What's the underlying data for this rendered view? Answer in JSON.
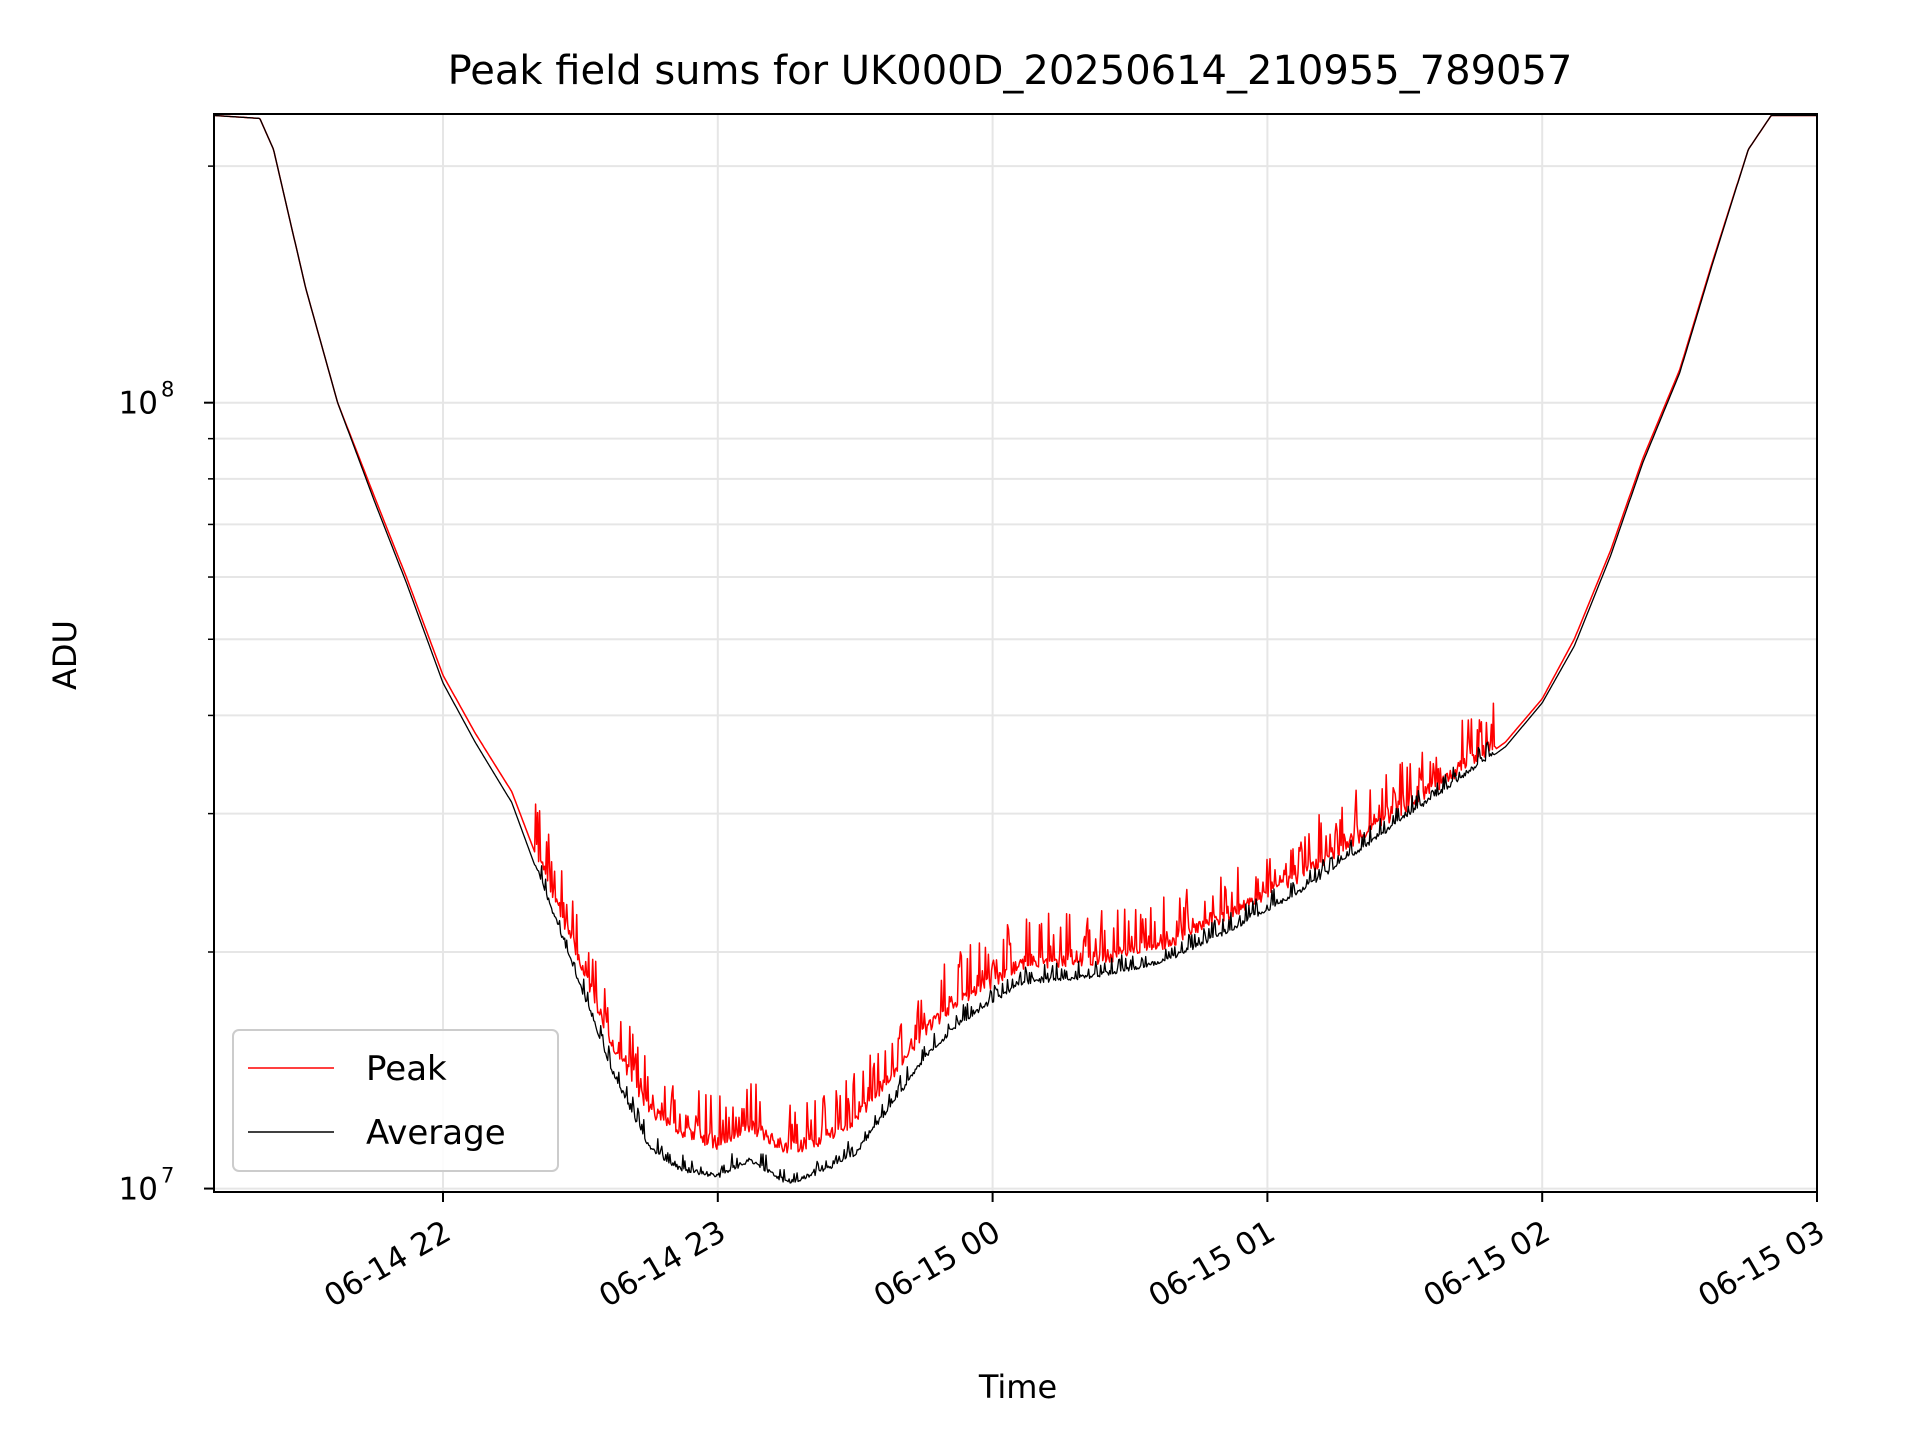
{
  "chart_data": {
    "type": "line",
    "title": "Peak field sums for UK000D_20250614_210955_789057",
    "xlabel": "Time",
    "ylabel": "ADU",
    "yscale": "log",
    "ylim": [
      9900000,
      233000000
    ],
    "xlim": [
      "2025-06-14 21:10",
      "2025-06-15 03:00"
    ],
    "grid": true,
    "legend_position": "lower-left",
    "x_ticks": [
      {
        "t": "2025-06-14 22:00",
        "label": "06-14 22"
      },
      {
        "t": "2025-06-14 23:00",
        "label": "06-14 23"
      },
      {
        "t": "2025-06-15 00:00",
        "label": "06-15 00"
      },
      {
        "t": "2025-06-15 01:00",
        "label": "06-15 01"
      },
      {
        "t": "2025-06-15 02:00",
        "label": "06-15 02"
      },
      {
        "t": "2025-06-15 03:00",
        "label": "06-15 03"
      }
    ],
    "y_ticks": [
      {
        "value": 10000000,
        "label": "10",
        "exp": "7"
      },
      {
        "value": 100000000,
        "label": "10",
        "exp": "8"
      }
    ],
    "y_minor_ticks": [
      20000000,
      30000000,
      40000000,
      50000000,
      60000000,
      70000000,
      80000000,
      90000000,
      200000000
    ],
    "series": [
      {
        "name": "Peak",
        "color": "#ff0000",
        "noise": 0.07,
        "points": [
          [
            "2025-06-14 21:10",
            232000000
          ],
          [
            "2025-06-14 21:20",
            230000000
          ],
          [
            "2025-06-14 21:23",
            210000000
          ],
          [
            "2025-06-14 21:30",
            140000000
          ],
          [
            "2025-06-14 21:37",
            100000000
          ],
          [
            "2025-06-14 21:45",
            76000000
          ],
          [
            "2025-06-14 21:52",
            60000000
          ],
          [
            "2025-06-14 22:00",
            45000000
          ],
          [
            "2025-06-14 22:07",
            38000000
          ],
          [
            "2025-06-14 22:15",
            32000000
          ],
          [
            "2025-06-14 22:22",
            25000000
          ],
          [
            "2025-06-14 22:30",
            19000000
          ],
          [
            "2025-06-14 22:37",
            15000000
          ],
          [
            "2025-06-14 22:45",
            12400000
          ],
          [
            "2025-06-14 22:52",
            11600000
          ],
          [
            "2025-06-14 23:00",
            11200000
          ],
          [
            "2025-06-14 23:07",
            11800000
          ],
          [
            "2025-06-14 23:15",
            11000000
          ],
          [
            "2025-06-14 23:22",
            11300000
          ],
          [
            "2025-06-14 23:30",
            12000000
          ],
          [
            "2025-06-14 23:37",
            13500000
          ],
          [
            "2025-06-14 23:45",
            15500000
          ],
          [
            "2025-06-14 23:52",
            17000000
          ],
          [
            "2025-06-15 00:00",
            18000000
          ],
          [
            "2025-06-15 00:07",
            19000000
          ],
          [
            "2025-06-15 00:22",
            19200000
          ],
          [
            "2025-06-15 00:37",
            20000000
          ],
          [
            "2025-06-15 00:52",
            22000000
          ],
          [
            "2025-06-15 01:07",
            24500000
          ],
          [
            "2025-06-15 01:22",
            28000000
          ],
          [
            "2025-06-15 01:37",
            32000000
          ],
          [
            "2025-06-15 01:52",
            37000000
          ],
          [
            "2025-06-15 02:00",
            42000000
          ],
          [
            "2025-06-15 02:07",
            50000000
          ],
          [
            "2025-06-15 02:15",
            65000000
          ],
          [
            "2025-06-15 02:22",
            85000000
          ],
          [
            "2025-06-15 02:30",
            110000000
          ],
          [
            "2025-06-15 02:37",
            150000000
          ],
          [
            "2025-06-15 02:45",
            210000000
          ],
          [
            "2025-06-15 02:50",
            232000000
          ],
          [
            "2025-06-15 03:00",
            232000000
          ]
        ]
      },
      {
        "name": "Average",
        "color": "#000000",
        "noise": 0.025,
        "points": [
          [
            "2025-06-14 21:10",
            232000000
          ],
          [
            "2025-06-14 21:20",
            230000000
          ],
          [
            "2025-06-14 21:23",
            210000000
          ],
          [
            "2025-06-14 21:30",
            140000000
          ],
          [
            "2025-06-14 21:37",
            100000000
          ],
          [
            "2025-06-14 21:45",
            75000000
          ],
          [
            "2025-06-14 21:52",
            59000000
          ],
          [
            "2025-06-14 22:00",
            44000000
          ],
          [
            "2025-06-14 22:07",
            37000000
          ],
          [
            "2025-06-14 22:15",
            31000000
          ],
          [
            "2025-06-14 22:22",
            24000000
          ],
          [
            "2025-06-14 22:30",
            18000000
          ],
          [
            "2025-06-14 22:37",
            14000000
          ],
          [
            "2025-06-14 22:45",
            11200000
          ],
          [
            "2025-06-14 22:52",
            10500000
          ],
          [
            "2025-06-14 23:00",
            10300000
          ],
          [
            "2025-06-14 23:07",
            10800000
          ],
          [
            "2025-06-14 23:15",
            10100000
          ],
          [
            "2025-06-14 23:22",
            10400000
          ],
          [
            "2025-06-14 23:30",
            11000000
          ],
          [
            "2025-06-14 23:37",
            12500000
          ],
          [
            "2025-06-14 23:45",
            14500000
          ],
          [
            "2025-06-14 23:52",
            16000000
          ],
          [
            "2025-06-15 00:00",
            17200000
          ],
          [
            "2025-06-15 00:07",
            18200000
          ],
          [
            "2025-06-15 00:22",
            18500000
          ],
          [
            "2025-06-15 00:37",
            19300000
          ],
          [
            "2025-06-15 00:52",
            21200000
          ],
          [
            "2025-06-15 01:07",
            23700000
          ],
          [
            "2025-06-15 01:22",
            27300000
          ],
          [
            "2025-06-15 01:37",
            31500000
          ],
          [
            "2025-06-15 01:52",
            36500000
          ],
          [
            "2025-06-15 02:00",
            41500000
          ],
          [
            "2025-06-15 02:07",
            49000000
          ],
          [
            "2025-06-15 02:15",
            64000000
          ],
          [
            "2025-06-15 02:22",
            84000000
          ],
          [
            "2025-06-15 02:30",
            109000000
          ],
          [
            "2025-06-15 02:37",
            149000000
          ],
          [
            "2025-06-15 02:45",
            210000000
          ],
          [
            "2025-06-15 02:50",
            232000000
          ],
          [
            "2025-06-15 03:00",
            232000000
          ]
        ]
      }
    ]
  }
}
